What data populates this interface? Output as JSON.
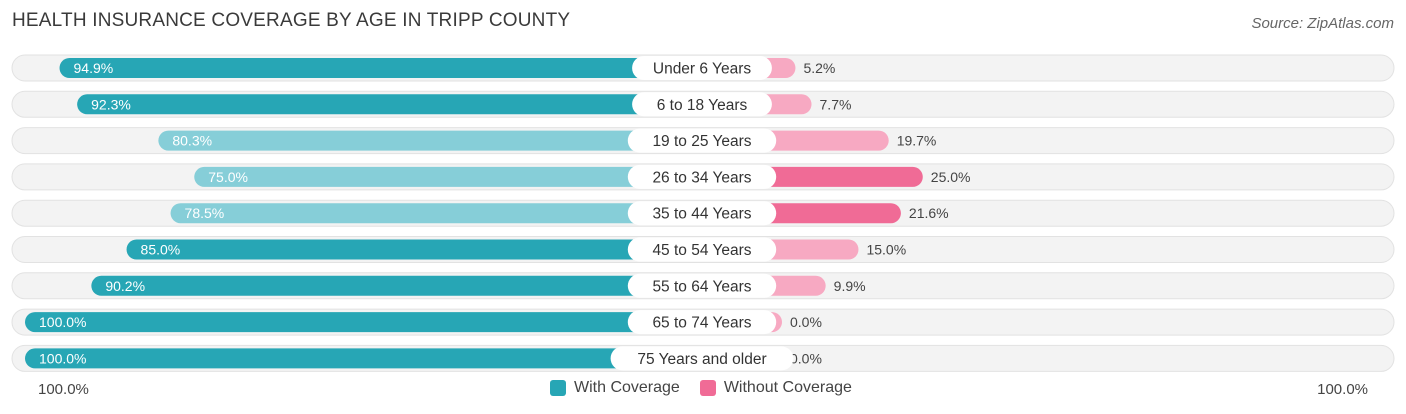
{
  "header": {
    "title": "HEALTH INSURANCE COVERAGE BY AGE IN TRIPP COUNTY",
    "source": "Source: ZipAtlas.com"
  },
  "footer": {
    "left_axis_label": "100.0%",
    "right_axis_label": "100.0%"
  },
  "legend": {
    "with_label": "With Coverage",
    "without_label": "Without Coverage"
  },
  "colors": {
    "with_strong": "#27a6b5",
    "with_light": "#86ced8",
    "without_strong": "#f06b96",
    "without_light": "#f7a9c2",
    "track": "#efefef"
  },
  "chart_data": {
    "type": "bar",
    "orientation": "diverging-horizontal",
    "title": "HEALTH INSURANCE COVERAGE BY AGE IN TRIPP COUNTY",
    "categories": [
      "Under 6 Years",
      "6 to 18 Years",
      "19 to 25 Years",
      "26 to 34 Years",
      "35 to 44 Years",
      "45 to 54 Years",
      "55 to 64 Years",
      "65 to 74 Years",
      "75 Years and older"
    ],
    "series": [
      {
        "name": "With Coverage",
        "values": [
          94.9,
          92.3,
          80.3,
          75.0,
          78.5,
          85.0,
          90.2,
          100.0,
          100.0
        ],
        "labels": [
          "94.9%",
          "92.3%",
          "80.3%",
          "75.0%",
          "78.5%",
          "85.0%",
          "90.2%",
          "100.0%",
          "100.0%"
        ]
      },
      {
        "name": "Without Coverage",
        "values": [
          5.2,
          7.7,
          19.7,
          25.0,
          21.6,
          15.0,
          9.9,
          0.0,
          0.0
        ],
        "labels": [
          "5.2%",
          "7.7%",
          "19.7%",
          "25.0%",
          "21.6%",
          "15.0%",
          "9.9%",
          "0.0%",
          "0.0%"
        ]
      }
    ],
    "xlim": [
      -100,
      100
    ],
    "legend_position": "bottom-center"
  }
}
